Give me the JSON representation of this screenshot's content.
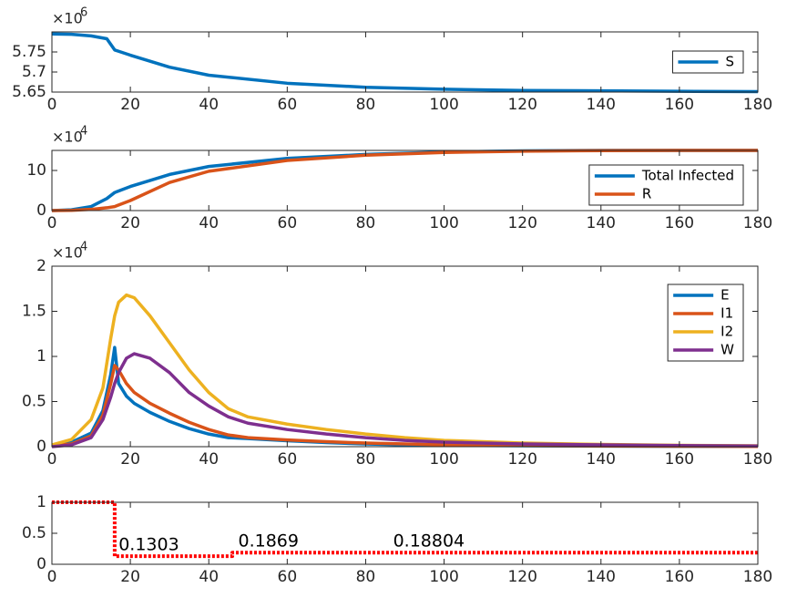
{
  "chart_data": [
    {
      "type": "line",
      "x": [
        0,
        5,
        10,
        14,
        16,
        20,
        30,
        40,
        60,
        80,
        100,
        120,
        140,
        160,
        180
      ],
      "series": [
        {
          "name": "S",
          "color": "#0072BD",
          "values": [
            5.795,
            5.794,
            5.79,
            5.783,
            5.755,
            5.742,
            5.712,
            5.692,
            5.672,
            5.662,
            5.657,
            5.654,
            5.653,
            5.652,
            5.651
          ]
        }
      ],
      "xlim": [
        0,
        180
      ],
      "xticks": [
        0,
        20,
        40,
        60,
        80,
        100,
        120,
        140,
        160,
        180
      ],
      "ylim": [
        5.65,
        5.8
      ],
      "yticks": [
        5.65,
        5.7,
        5.75
      ],
      "y_multiplier": "×10",
      "y_exponent": "6",
      "legend": "east"
    },
    {
      "type": "line",
      "x": [
        0,
        5,
        10,
        14,
        16,
        20,
        30,
        40,
        60,
        80,
        100,
        120,
        140,
        160,
        180
      ],
      "series": [
        {
          "name": "Total Infected",
          "color": "#0072BD",
          "values": [
            0,
            0.2,
            1,
            3,
            4.5,
            6,
            9,
            11,
            13,
            14,
            14.6,
            14.9,
            15,
            15,
            15
          ]
        },
        {
          "name": "R",
          "color": "#D95319",
          "values": [
            0,
            0.05,
            0.3,
            0.7,
            1,
            2.5,
            7,
            9.8,
            12.5,
            13.8,
            14.5,
            14.8,
            14.95,
            15,
            15
          ]
        }
      ],
      "xlim": [
        0,
        180
      ],
      "xticks": [
        0,
        20,
        40,
        60,
        80,
        100,
        120,
        140,
        160,
        180
      ],
      "ylim": [
        0,
        15
      ],
      "yticks": [
        0,
        10
      ],
      "y_multiplier": "×10",
      "y_exponent": "4",
      "legend": "southeast"
    },
    {
      "type": "line",
      "x": [
        0,
        5,
        10,
        13,
        15,
        16,
        17,
        19,
        21,
        25,
        30,
        35,
        40,
        45,
        50,
        60,
        70,
        80,
        90,
        100,
        120,
        140,
        160,
        180
      ],
      "series": [
        {
          "name": "E",
          "color": "#0072BD",
          "values": [
            0.02,
            0.05,
            0.15,
            0.4,
            0.8,
            1.1,
            0.7,
            0.56,
            0.48,
            0.38,
            0.28,
            0.2,
            0.14,
            0.1,
            0.09,
            0.065,
            0.045,
            0.03,
            0.02,
            0.015,
            0.01,
            0.006,
            0.004,
            0.003
          ]
        },
        {
          "name": "I1",
          "color": "#D95319",
          "values": [
            0.01,
            0.03,
            0.12,
            0.35,
            0.7,
            0.9,
            0.85,
            0.7,
            0.6,
            0.48,
            0.37,
            0.27,
            0.19,
            0.13,
            0.1,
            0.075,
            0.055,
            0.04,
            0.03,
            0.02,
            0.012,
            0.008,
            0.005,
            0.003
          ]
        },
        {
          "name": "I2",
          "color": "#EDB120",
          "values": [
            0.02,
            0.08,
            0.3,
            0.65,
            1.2,
            1.45,
            1.6,
            1.68,
            1.65,
            1.45,
            1.15,
            0.85,
            0.6,
            0.42,
            0.33,
            0.25,
            0.19,
            0.14,
            0.1,
            0.07,
            0.04,
            0.025,
            0.015,
            0.01
          ]
        },
        {
          "name": "W",
          "color": "#7E2F8E",
          "values": [
            0,
            0.02,
            0.1,
            0.3,
            0.55,
            0.7,
            0.82,
            0.98,
            1.03,
            0.98,
            0.82,
            0.6,
            0.45,
            0.33,
            0.26,
            0.19,
            0.14,
            0.1,
            0.07,
            0.05,
            0.03,
            0.02,
            0.012,
            0.008
          ]
        }
      ],
      "xlim": [
        0,
        180
      ],
      "xticks": [
        0,
        20,
        40,
        60,
        80,
        100,
        120,
        140,
        160,
        180
      ],
      "ylim": [
        0,
        2
      ],
      "yticks": [
        0,
        0.5,
        1,
        1.5,
        2
      ],
      "y_multiplier": "×10",
      "y_exponent": "4",
      "legend": "northeast"
    },
    {
      "type": "line",
      "x": [
        0,
        16,
        16,
        46,
        46,
        88,
        180
      ],
      "series": [
        {
          "color": "#FF0000",
          "line_style": "dotted",
          "values": [
            1,
            1,
            0.1303,
            0.1303,
            0.1869,
            0.18804,
            0.18804
          ]
        }
      ],
      "xlim": [
        0,
        180
      ],
      "xticks": [
        0,
        20,
        40,
        60,
        80,
        100,
        120,
        140,
        160,
        180
      ],
      "ylim": [
        0,
        1
      ],
      "yticks": [
        0,
        0.5,
        1
      ],
      "annotations": [
        {
          "text": "0.1303",
          "x": 17,
          "y": 0.13
        },
        {
          "text": "0.1869",
          "x": 47.5,
          "y": 0.19
        },
        {
          "text": "0.18804",
          "x": 87,
          "y": 0.19
        }
      ]
    }
  ]
}
